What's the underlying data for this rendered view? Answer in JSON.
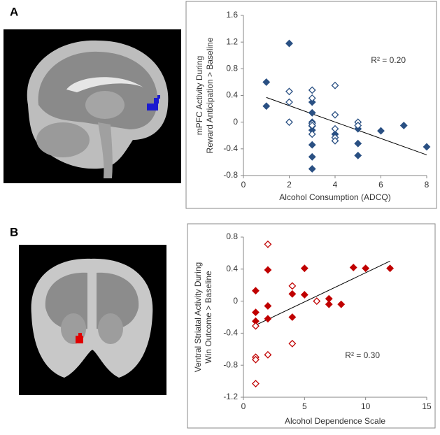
{
  "chart_data": [
    {
      "type": "scatter",
      "panel": "A",
      "ylabel": [
        "mPFC Activity During",
        "Reward Anticipation > Baseline"
      ],
      "xlabel": "Alcohol Consumption (ADCQ)",
      "annotation": "R² = 0.20",
      "xlim": [
        0,
        8
      ],
      "xticks": [
        0,
        2,
        4,
        6,
        8
      ],
      "ylim": [
        -0.8,
        1.6
      ],
      "yticks": [
        -0.8,
        -0.4,
        0,
        0.4,
        0.8,
        1.2,
        1.6
      ],
      "series": [
        {
          "color": "#2a5083",
          "filled": true,
          "x": [
            1,
            1,
            2,
            3,
            3,
            3,
            3,
            3,
            3,
            3,
            3,
            4,
            5,
            5,
            5,
            6,
            7,
            8
          ],
          "values": [
            0.6,
            0.24,
            1.18,
            0.3,
            0.14,
            0.0,
            -0.06,
            -0.12,
            -0.34,
            -0.52,
            -0.7,
            -0.18,
            -0.1,
            -0.32,
            -0.5,
            -0.13,
            -0.05,
            -0.37
          ]
        },
        {
          "color": "#2a5083",
          "filled": false,
          "x": [
            2,
            2,
            2,
            3,
            3,
            3,
            3,
            3,
            4,
            4,
            4,
            4,
            4,
            5,
            5
          ],
          "values": [
            0.46,
            0.3,
            0.0,
            0.48,
            0.36,
            -0.02,
            -0.05,
            -0.18,
            0.55,
            0.11,
            -0.1,
            -0.23,
            -0.28,
            0.0,
            -0.05
          ]
        }
      ],
      "trendline": {
        "x": [
          1,
          8
        ],
        "y": [
          0.37,
          -0.49
        ]
      }
    },
    {
      "type": "scatter",
      "panel": "B",
      "ylabel": [
        "Ventral Striatal Activity During",
        "Win Outcome > Baseline"
      ],
      "xlabel": "Alcohol Dependence Scale",
      "annotation": "R² = 0.30",
      "xlim": [
        0,
        15
      ],
      "xticks": [
        0,
        5,
        10,
        15
      ],
      "ylim": [
        -1.2,
        0.8
      ],
      "yticks": [
        -1.2,
        -0.8,
        -0.4,
        0,
        0.4,
        0.8
      ],
      "series": [
        {
          "color": "#c00000",
          "filled": true,
          "x": [
            1,
            1,
            1,
            2,
            2,
            2,
            4,
            4,
            5,
            5,
            7,
            7,
            8,
            9,
            10,
            12
          ],
          "values": [
            0.13,
            -0.14,
            -0.25,
            0.39,
            -0.06,
            -0.22,
            0.09,
            -0.2,
            0.41,
            0.08,
            0.03,
            -0.04,
            -0.04,
            0.42,
            0.41,
            0.41
          ]
        },
        {
          "color": "#c00000",
          "filled": false,
          "x": [
            1,
            1,
            1,
            1,
            2,
            2,
            4,
            4,
            6
          ],
          "values": [
            -0.31,
            -0.7,
            -0.73,
            -1.03,
            0.71,
            -0.67,
            0.19,
            -0.53,
            0.0
          ]
        }
      ],
      "trendline": {
        "x": [
          1,
          12
        ],
        "y": [
          -0.3,
          0.5
        ]
      }
    }
  ]
}
